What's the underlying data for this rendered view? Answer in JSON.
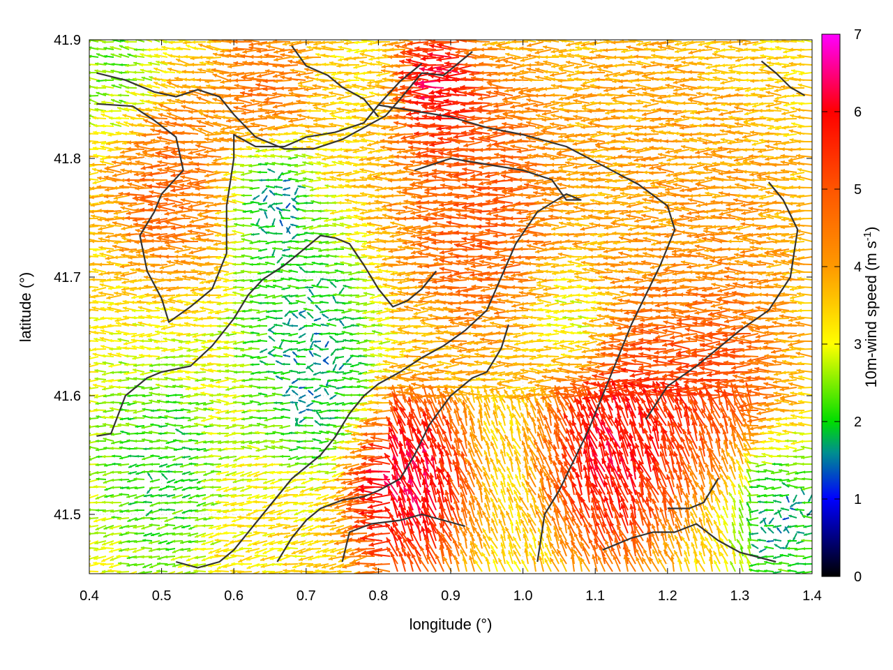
{
  "chart_data": {
    "type": "quiver",
    "xlabel": "longitude (°)",
    "ylabel": "latitude (°)",
    "xlim": [
      0.4,
      1.4
    ],
    "ylim": [
      41.45,
      41.9
    ],
    "xticks": [
      "0.4",
      "0.5",
      "0.6",
      "0.7",
      "0.8",
      "0.9",
      "1.0",
      "1.1",
      "1.2",
      "1.3",
      "1.4"
    ],
    "yticks": [
      "41.5",
      "41.6",
      "41.7",
      "41.8",
      "41.9"
    ],
    "colorbar": {
      "label_main": "10m-wind speed (m s",
      "label_sup": "-1",
      "label_end": ")",
      "range": [
        0,
        7
      ],
      "ticks": [
        "0",
        "1",
        "2",
        "3",
        "4",
        "5",
        "6",
        "7"
      ],
      "stops": [
        {
          "value": 0,
          "color": "#000000"
        },
        {
          "value": 1,
          "color": "#0000ff"
        },
        {
          "value": 1.6,
          "color": "#008f8f"
        },
        {
          "value": 2,
          "color": "#00dd00"
        },
        {
          "value": 3,
          "color": "#ffff00"
        },
        {
          "value": 4,
          "color": "#ff9900"
        },
        {
          "value": 5,
          "color": "#ff5500"
        },
        {
          "value": 6,
          "color": "#ff0000"
        },
        {
          "value": 7,
          "color": "#ff00ff"
        }
      ]
    },
    "grid": true,
    "contour_color": "#333333",
    "contours": [
      [
        [
          0.41,
          41.872
        ],
        [
          0.45,
          41.866
        ],
        [
          0.49,
          41.856
        ],
        [
          0.52,
          41.852
        ],
        [
          0.55,
          41.858
        ],
        [
          0.58,
          41.852
        ],
        [
          0.6,
          41.837
        ],
        [
          0.63,
          41.818
        ],
        [
          0.67,
          41.808
        ],
        [
          0.71,
          41.808
        ],
        [
          0.75,
          41.816
        ],
        [
          0.78,
          41.826
        ],
        [
          0.81,
          41.836
        ],
        [
          0.83,
          41.85
        ],
        [
          0.86,
          41.872
        ],
        [
          0.89,
          41.87
        ],
        [
          0.93,
          41.89
        ]
      ],
      [
        [
          0.41,
          41.846
        ],
        [
          0.46,
          41.844
        ],
        [
          0.49,
          41.832
        ],
        [
          0.52,
          41.818
        ],
        [
          0.53,
          41.79
        ],
        [
          0.5,
          41.77
        ],
        [
          0.49,
          41.755
        ],
        [
          0.47,
          41.735
        ],
        [
          0.48,
          41.705
        ],
        [
          0.5,
          41.682
        ],
        [
          0.51,
          41.662
        ],
        [
          0.54,
          41.675
        ],
        [
          0.57,
          41.69
        ],
        [
          0.59,
          41.72
        ],
        [
          0.59,
          41.76
        ],
        [
          0.6,
          41.8
        ],
        [
          0.6,
          41.82
        ],
        [
          0.63,
          41.81
        ],
        [
          0.67,
          41.81
        ],
        [
          0.7,
          41.818
        ],
        [
          0.74,
          41.822
        ],
        [
          0.78,
          41.83
        ],
        [
          0.8,
          41.845
        ],
        [
          0.83,
          41.865
        ],
        [
          0.86,
          41.88
        ]
      ],
      [
        [
          0.41,
          41.566
        ],
        [
          0.43,
          41.568
        ],
        [
          0.45,
          41.6
        ],
        [
          0.48,
          41.615
        ],
        [
          0.5,
          41.62
        ],
        [
          0.54,
          41.625
        ],
        [
          0.57,
          41.642
        ],
        [
          0.6,
          41.665
        ],
        [
          0.62,
          41.685
        ],
        [
          0.64,
          41.698
        ],
        [
          0.67,
          41.71
        ],
        [
          0.7,
          41.725
        ],
        [
          0.72,
          41.735
        ],
        [
          0.74,
          41.733
        ],
        [
          0.76,
          41.728
        ],
        [
          0.78,
          41.71
        ],
        [
          0.8,
          41.69
        ],
        [
          0.82,
          41.675
        ],
        [
          0.84,
          41.68
        ],
        [
          0.86,
          41.69
        ],
        [
          0.88,
          41.705
        ]
      ],
      [
        [
          0.8,
          41.845
        ],
        [
          0.85,
          41.84
        ],
        [
          0.9,
          41.835
        ],
        [
          0.95,
          41.826
        ],
        [
          1.0,
          41.82
        ],
        [
          1.06,
          41.81
        ],
        [
          1.11,
          41.794
        ],
        [
          1.16,
          41.778
        ],
        [
          1.2,
          41.76
        ],
        [
          1.21,
          41.74
        ],
        [
          1.19,
          41.71
        ],
        [
          1.17,
          41.685
        ],
        [
          1.15,
          41.66
        ],
        [
          1.13,
          41.63
        ],
        [
          1.11,
          41.6
        ],
        [
          1.09,
          41.57
        ],
        [
          1.07,
          41.545
        ],
        [
          1.05,
          41.52
        ],
        [
          1.03,
          41.5
        ],
        [
          1.02,
          41.46
        ]
      ],
      [
        [
          0.85,
          41.79
        ],
        [
          0.9,
          41.8
        ],
        [
          0.95,
          41.795
        ],
        [
          1.0,
          41.79
        ],
        [
          1.04,
          41.782
        ],
        [
          1.06,
          41.765
        ],
        [
          1.08,
          41.765
        ],
        [
          1.06,
          41.77
        ],
        [
          1.02,
          41.755
        ],
        [
          0.99,
          41.728
        ],
        [
          0.97,
          41.7
        ],
        [
          0.95,
          41.672
        ],
        [
          0.92,
          41.655
        ],
        [
          0.89,
          41.642
        ],
        [
          0.86,
          41.632
        ],
        [
          0.83,
          41.62
        ],
        [
          0.8,
          41.61
        ],
        [
          0.78,
          41.6
        ],
        [
          0.76,
          41.585
        ],
        [
          0.74,
          41.565
        ],
        [
          0.72,
          41.55
        ],
        [
          0.7,
          41.54
        ],
        [
          0.68,
          41.53
        ],
        [
          0.66,
          41.515
        ],
        [
          0.64,
          41.5
        ],
        [
          0.62,
          41.485
        ],
        [
          0.6,
          41.47
        ],
        [
          0.58,
          41.46
        ],
        [
          0.55,
          41.455
        ],
        [
          0.52,
          41.46
        ]
      ],
      [
        [
          0.66,
          41.46
        ],
        [
          0.68,
          41.48
        ],
        [
          0.7,
          41.495
        ],
        [
          0.72,
          41.505
        ],
        [
          0.75,
          41.512
        ],
        [
          0.78,
          41.515
        ],
        [
          0.8,
          41.52
        ],
        [
          0.83,
          41.53
        ],
        [
          0.85,
          41.55
        ],
        [
          0.87,
          41.575
        ],
        [
          0.9,
          41.6
        ],
        [
          0.93,
          41.615
        ],
        [
          0.95,
          41.62
        ],
        [
          0.97,
          41.64
        ],
        [
          0.98,
          41.66
        ]
      ],
      [
        [
          0.75,
          41.46
        ],
        [
          0.76,
          41.485
        ],
        [
          0.79,
          41.492
        ],
        [
          0.83,
          41.495
        ],
        [
          0.86,
          41.5
        ],
        [
          0.89,
          41.495
        ],
        [
          0.92,
          41.49
        ]
      ],
      [
        [
          1.11,
          41.47
        ],
        [
          1.15,
          41.48
        ],
        [
          1.18,
          41.485
        ],
        [
          1.21,
          41.485
        ],
        [
          1.24,
          41.492
        ],
        [
          1.27,
          41.478
        ],
        [
          1.3,
          41.468
        ],
        [
          1.35,
          41.46
        ]
      ],
      [
        [
          1.2,
          41.505
        ],
        [
          1.23,
          41.505
        ],
        [
          1.25,
          41.51
        ],
        [
          1.27,
          41.53
        ],
        [
          1.26,
          41.52
        ]
      ],
      [
        [
          1.34,
          41.78
        ],
        [
          1.36,
          41.765
        ],
        [
          1.38,
          41.74
        ],
        [
          1.37,
          41.7
        ],
        [
          1.34,
          41.672
        ],
        [
          1.3,
          41.655
        ],
        [
          1.27,
          41.64
        ],
        [
          1.24,
          41.625
        ],
        [
          1.2,
          41.608
        ],
        [
          1.17,
          41.58
        ]
      ],
      [
        [
          1.33,
          41.882
        ],
        [
          1.35,
          41.872
        ],
        [
          1.37,
          41.86
        ],
        [
          1.39,
          41.853
        ]
      ],
      [
        [
          0.68,
          41.895
        ],
        [
          0.7,
          41.878
        ],
        [
          0.73,
          41.87
        ],
        [
          0.75,
          41.86
        ],
        [
          0.78,
          41.85
        ],
        [
          0.8,
          41.835
        ]
      ]
    ]
  }
}
